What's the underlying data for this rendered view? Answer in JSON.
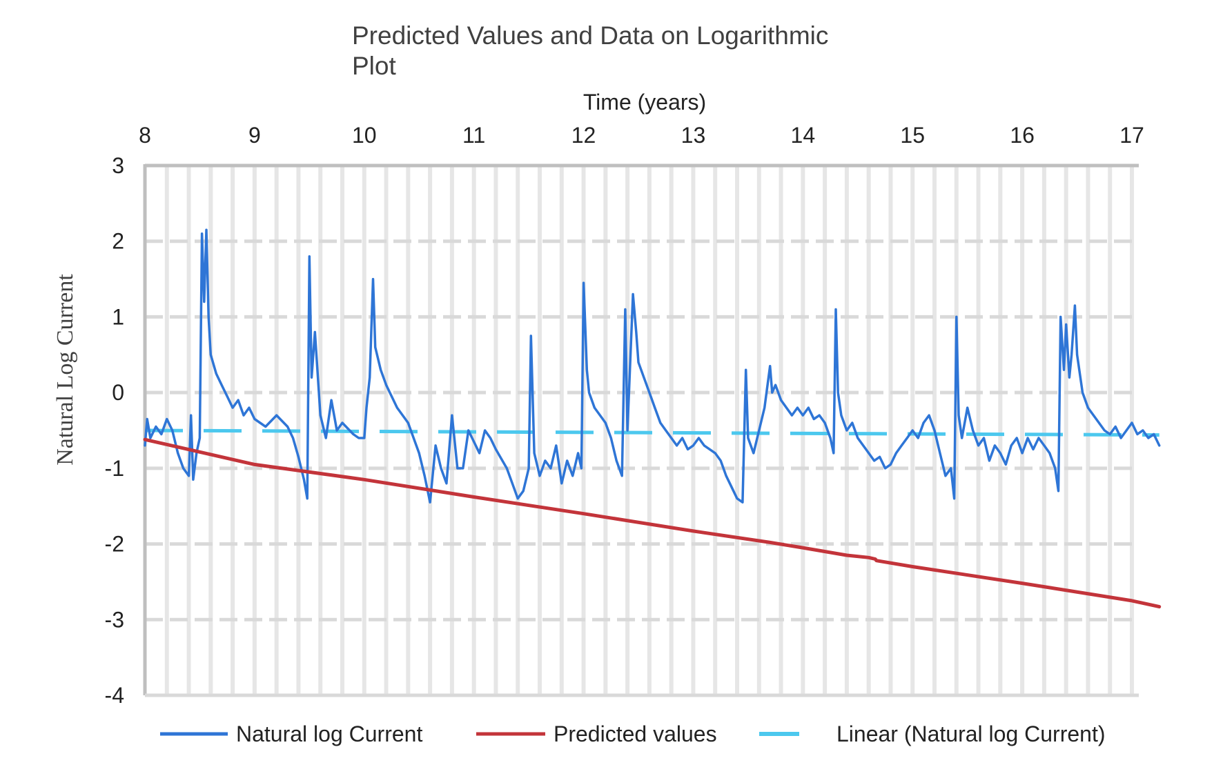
{
  "chart_data": {
    "type": "line",
    "title_lines": [
      "Predicted Values and Data on Logarithmic",
      "Plot"
    ],
    "xlabel": "Time (years)",
    "ylabel": "Natural Log Current",
    "xlim": [
      8,
      17.25
    ],
    "ylim": [
      -4,
      3
    ],
    "x_ticks": [
      8,
      9,
      10,
      11,
      12,
      13,
      14,
      15,
      16,
      17
    ],
    "x_tick_labels": [
      "8",
      "9",
      "10",
      "11",
      "12",
      "13",
      "14",
      "15",
      "16",
      "17"
    ],
    "y_ticks": [
      3,
      2,
      1,
      0,
      -1,
      -2,
      -3,
      -4
    ],
    "y_tick_labels": [
      "3",
      "2",
      "1",
      "0",
      "-1",
      "-2",
      "-3",
      "-4"
    ],
    "x_axis_position": "top",
    "grid": true,
    "legend_position": "bottom",
    "series": [
      {
        "name": "Natural log Current",
        "color": "#2E75D6",
        "style": "solid",
        "points": [
          [
            8.0,
            -0.7
          ],
          [
            8.02,
            -0.35
          ],
          [
            8.05,
            -0.6
          ],
          [
            8.1,
            -0.45
          ],
          [
            8.15,
            -0.55
          ],
          [
            8.2,
            -0.35
          ],
          [
            8.25,
            -0.5
          ],
          [
            8.3,
            -0.8
          ],
          [
            8.35,
            -1.0
          ],
          [
            8.4,
            -1.1
          ],
          [
            8.42,
            -0.3
          ],
          [
            8.44,
            -1.15
          ],
          [
            8.47,
            -0.8
          ],
          [
            8.5,
            -0.6
          ],
          [
            8.52,
            2.1
          ],
          [
            8.54,
            1.2
          ],
          [
            8.56,
            2.15
          ],
          [
            8.58,
            1.0
          ],
          [
            8.6,
            0.5
          ],
          [
            8.65,
            0.25
          ],
          [
            8.7,
            0.1
          ],
          [
            8.75,
            -0.05
          ],
          [
            8.8,
            -0.2
          ],
          [
            8.85,
            -0.1
          ],
          [
            8.9,
            -0.3
          ],
          [
            8.95,
            -0.2
          ],
          [
            9.0,
            -0.35
          ],
          [
            9.1,
            -0.45
          ],
          [
            9.2,
            -0.3
          ],
          [
            9.3,
            -0.45
          ],
          [
            9.35,
            -0.6
          ],
          [
            9.4,
            -0.85
          ],
          [
            9.45,
            -1.15
          ],
          [
            9.48,
            -1.4
          ],
          [
            9.5,
            1.8
          ],
          [
            9.52,
            0.2
          ],
          [
            9.55,
            0.8
          ],
          [
            9.6,
            -0.3
          ],
          [
            9.65,
            -0.6
          ],
          [
            9.7,
            -0.1
          ],
          [
            9.75,
            -0.5
          ],
          [
            9.8,
            -0.4
          ],
          [
            9.9,
            -0.55
          ],
          [
            9.95,
            -0.6
          ],
          [
            10.0,
            -0.6
          ],
          [
            10.02,
            -0.2
          ],
          [
            10.05,
            0.2
          ],
          [
            10.08,
            1.5
          ],
          [
            10.1,
            0.6
          ],
          [
            10.15,
            0.3
          ],
          [
            10.2,
            0.1
          ],
          [
            10.3,
            -0.2
          ],
          [
            10.4,
            -0.4
          ],
          [
            10.5,
            -0.8
          ],
          [
            10.55,
            -1.1
          ],
          [
            10.6,
            -1.45
          ],
          [
            10.65,
            -0.7
          ],
          [
            10.7,
            -1.0
          ],
          [
            10.75,
            -1.2
          ],
          [
            10.8,
            -0.3
          ],
          [
            10.85,
            -1.0
          ],
          [
            10.9,
            -1.0
          ],
          [
            10.95,
            -0.5
          ],
          [
            11.0,
            -0.65
          ],
          [
            11.05,
            -0.8
          ],
          [
            11.1,
            -0.5
          ],
          [
            11.15,
            -0.6
          ],
          [
            11.2,
            -0.75
          ],
          [
            11.3,
            -1.0
          ],
          [
            11.35,
            -1.2
          ],
          [
            11.4,
            -1.4
          ],
          [
            11.45,
            -1.3
          ],
          [
            11.5,
            -1.0
          ],
          [
            11.52,
            0.75
          ],
          [
            11.55,
            -0.8
          ],
          [
            11.6,
            -1.1
          ],
          [
            11.65,
            -0.9
          ],
          [
            11.7,
            -1.0
          ],
          [
            11.75,
            -0.7
          ],
          [
            11.8,
            -1.2
          ],
          [
            11.85,
            -0.9
          ],
          [
            11.9,
            -1.1
          ],
          [
            11.95,
            -0.8
          ],
          [
            11.98,
            -1.0
          ],
          [
            12.0,
            1.45
          ],
          [
            12.03,
            0.3
          ],
          [
            12.05,
            0.0
          ],
          [
            12.1,
            -0.2
          ],
          [
            12.15,
            -0.3
          ],
          [
            12.2,
            -0.4
          ],
          [
            12.25,
            -0.6
          ],
          [
            12.3,
            -0.9
          ],
          [
            12.35,
            -1.1
          ],
          [
            12.38,
            1.1
          ],
          [
            12.4,
            -0.5
          ],
          [
            12.45,
            1.3
          ],
          [
            12.48,
            0.8
          ],
          [
            12.5,
            0.4
          ],
          [
            12.55,
            0.2
          ],
          [
            12.6,
            0.0
          ],
          [
            12.65,
            -0.2
          ],
          [
            12.7,
            -0.4
          ],
          [
            12.75,
            -0.5
          ],
          [
            12.8,
            -0.6
          ],
          [
            12.85,
            -0.7
          ],
          [
            12.9,
            -0.6
          ],
          [
            12.95,
            -0.75
          ],
          [
            13.0,
            -0.7
          ],
          [
            13.05,
            -0.6
          ],
          [
            13.1,
            -0.7
          ],
          [
            13.15,
            -0.75
          ],
          [
            13.2,
            -0.8
          ],
          [
            13.25,
            -0.9
          ],
          [
            13.3,
            -1.1
          ],
          [
            13.35,
            -1.25
          ],
          [
            13.4,
            -1.4
          ],
          [
            13.45,
            -1.45
          ],
          [
            13.48,
            0.3
          ],
          [
            13.5,
            -0.6
          ],
          [
            13.55,
            -0.8
          ],
          [
            13.6,
            -0.5
          ],
          [
            13.65,
            -0.2
          ],
          [
            13.7,
            0.35
          ],
          [
            13.72,
            0.0
          ],
          [
            13.75,
            0.1
          ],
          [
            13.8,
            -0.1
          ],
          [
            13.85,
            -0.2
          ],
          [
            13.9,
            -0.3
          ],
          [
            13.95,
            -0.2
          ],
          [
            14.0,
            -0.3
          ],
          [
            14.05,
            -0.2
          ],
          [
            14.1,
            -0.35
          ],
          [
            14.15,
            -0.3
          ],
          [
            14.2,
            -0.4
          ],
          [
            14.25,
            -0.6
          ],
          [
            14.28,
            -0.8
          ],
          [
            14.3,
            1.1
          ],
          [
            14.32,
            0.0
          ],
          [
            14.35,
            -0.3
          ],
          [
            14.4,
            -0.5
          ],
          [
            14.45,
            -0.4
          ],
          [
            14.5,
            -0.6
          ],
          [
            14.55,
            -0.7
          ],
          [
            14.6,
            -0.8
          ],
          [
            14.65,
            -0.9
          ],
          [
            14.7,
            -0.85
          ],
          [
            14.75,
            -1.0
          ],
          [
            14.8,
            -0.95
          ],
          [
            14.85,
            -0.8
          ],
          [
            14.9,
            -0.7
          ],
          [
            14.95,
            -0.6
          ],
          [
            15.0,
            -0.5
          ],
          [
            15.05,
            -0.6
          ],
          [
            15.1,
            -0.4
          ],
          [
            15.15,
            -0.3
          ],
          [
            15.2,
            -0.5
          ],
          [
            15.25,
            -0.8
          ],
          [
            15.3,
            -1.1
          ],
          [
            15.35,
            -1.0
          ],
          [
            15.38,
            -1.4
          ],
          [
            15.4,
            1.0
          ],
          [
            15.42,
            -0.3
          ],
          [
            15.45,
            -0.6
          ],
          [
            15.5,
            -0.2
          ],
          [
            15.55,
            -0.5
          ],
          [
            15.6,
            -0.7
          ],
          [
            15.65,
            -0.6
          ],
          [
            15.7,
            -0.9
          ],
          [
            15.75,
            -0.7
          ],
          [
            15.8,
            -0.8
          ],
          [
            15.85,
            -0.95
          ],
          [
            15.9,
            -0.7
          ],
          [
            15.95,
            -0.6
          ],
          [
            16.0,
            -0.8
          ],
          [
            16.05,
            -0.6
          ],
          [
            16.1,
            -0.75
          ],
          [
            16.15,
            -0.6
          ],
          [
            16.2,
            -0.7
          ],
          [
            16.25,
            -0.8
          ],
          [
            16.3,
            -1.0
          ],
          [
            16.33,
            -1.3
          ],
          [
            16.35,
            1.0
          ],
          [
            16.38,
            0.3
          ],
          [
            16.4,
            0.9
          ],
          [
            16.43,
            0.2
          ],
          [
            16.45,
            0.5
          ],
          [
            16.48,
            1.15
          ],
          [
            16.5,
            0.5
          ],
          [
            16.55,
            0.0
          ],
          [
            16.6,
            -0.2
          ],
          [
            16.65,
            -0.3
          ],
          [
            16.7,
            -0.4
          ],
          [
            16.75,
            -0.5
          ],
          [
            16.8,
            -0.55
          ],
          [
            16.85,
            -0.45
          ],
          [
            16.9,
            -0.6
          ],
          [
            16.95,
            -0.5
          ],
          [
            17.0,
            -0.4
          ],
          [
            17.05,
            -0.55
          ],
          [
            17.1,
            -0.5
          ],
          [
            17.15,
            -0.6
          ],
          [
            17.2,
            -0.55
          ],
          [
            17.25,
            -0.7
          ]
        ]
      },
      {
        "name": "Predicted values",
        "color": "#C3343A",
        "style": "solid",
        "points": [
          [
            8.0,
            -0.62
          ],
          [
            9.0,
            -0.95
          ],
          [
            10.0,
            -1.15
          ],
          [
            11.0,
            -1.38
          ],
          [
            12.0,
            -1.6
          ],
          [
            13.0,
            -1.83
          ],
          [
            13.7,
            -1.98
          ],
          [
            14.0,
            -2.05
          ],
          [
            14.4,
            -2.15
          ],
          [
            14.6,
            -2.18
          ],
          [
            14.66,
            -2.2
          ],
          [
            14.67,
            -2.22
          ],
          [
            15.0,
            -2.3
          ],
          [
            16.0,
            -2.52
          ],
          [
            17.0,
            -2.75
          ],
          [
            17.25,
            -2.83
          ]
        ]
      },
      {
        "name": "Linear (Natural log Current)",
        "color": "#4CC8EE",
        "style": "dashed",
        "points": [
          [
            8.0,
            -0.5
          ],
          [
            17.25,
            -0.56
          ]
        ]
      }
    ]
  }
}
